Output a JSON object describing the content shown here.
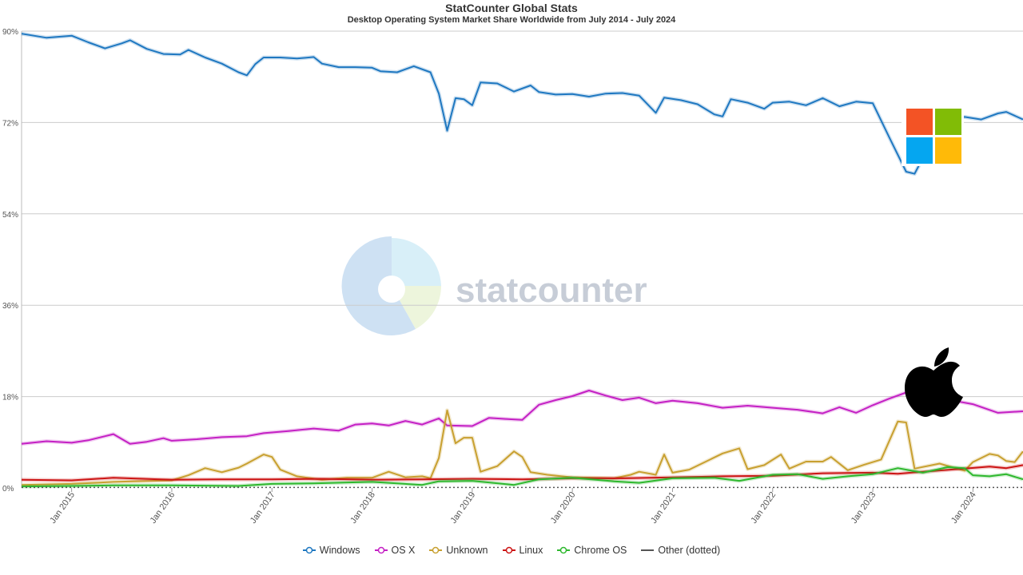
{
  "header": {
    "title": "StatCounter Global Stats",
    "subtitle": "Desktop Operating System Market Share Worldwide from July 2014 - July 2024"
  },
  "watermark": {
    "text": "statcounter"
  },
  "chart_data": {
    "type": "line",
    "x_start": "2014-07",
    "x_end": "2024-07",
    "ylim": [
      0,
      90
    ],
    "yticks": [
      0,
      18,
      36,
      54,
      72,
      90
    ],
    "ytick_labels": [
      "0%",
      "18%",
      "36%",
      "54%",
      "72%",
      "90%"
    ],
    "xticks": [
      "2015-01",
      "2016-01",
      "2017-01",
      "2018-01",
      "2019-01",
      "2020-01",
      "2021-01",
      "2022-01",
      "2023-01",
      "2024-01"
    ],
    "xtick_labels": [
      "Jan 2015",
      "Jan 2016",
      "Jan 2017",
      "Jan 2018",
      "Jan 2019",
      "Jan 2020",
      "Jan 2021",
      "Jan 2022",
      "Jan 2023",
      "Jan 2024"
    ],
    "grid": true,
    "legend_position": "bottom",
    "series": [
      {
        "name": "Windows",
        "color": "#1f78c1",
        "points": [
          [
            "2014-07",
            89.5
          ],
          [
            "2014-10",
            88.7
          ],
          [
            "2015-01",
            89.1
          ],
          [
            "2015-03",
            87.8
          ],
          [
            "2015-05",
            86.6
          ],
          [
            "2015-07",
            87.6
          ],
          [
            "2015-08",
            88.2
          ],
          [
            "2015-10",
            86.5
          ],
          [
            "2015-12",
            85.5
          ],
          [
            "2016-02",
            85.4
          ],
          [
            "2016-03",
            86.3
          ],
          [
            "2016-05",
            84.8
          ],
          [
            "2016-07",
            83.6
          ],
          [
            "2016-09",
            81.9
          ],
          [
            "2016-10",
            81.3
          ],
          [
            "2016-11",
            83.5
          ],
          [
            "2016-12",
            84.8
          ],
          [
            "2017-02",
            84.8
          ],
          [
            "2017-04",
            84.6
          ],
          [
            "2017-06",
            84.9
          ],
          [
            "2017-07",
            83.6
          ],
          [
            "2017-09",
            82.9
          ],
          [
            "2017-11",
            82.9
          ],
          [
            "2018-01",
            82.8
          ],
          [
            "2018-02",
            82.1
          ],
          [
            "2018-04",
            81.9
          ],
          [
            "2018-06",
            83.1
          ],
          [
            "2018-08",
            81.9
          ],
          [
            "2018-09",
            77.7
          ],
          [
            "2018-10",
            70.4
          ],
          [
            "2018-11",
            76.8
          ],
          [
            "2018-12",
            76.6
          ],
          [
            "2019-01",
            75.4
          ],
          [
            "2019-02",
            79.9
          ],
          [
            "2019-04",
            79.7
          ],
          [
            "2019-06",
            78.1
          ],
          [
            "2019-08",
            79.3
          ],
          [
            "2019-09",
            78.0
          ],
          [
            "2019-11",
            77.5
          ],
          [
            "2020-01",
            77.6
          ],
          [
            "2020-03",
            77.1
          ],
          [
            "2020-05",
            77.7
          ],
          [
            "2020-07",
            77.8
          ],
          [
            "2020-09",
            77.3
          ],
          [
            "2020-11",
            73.9
          ],
          [
            "2020-12",
            76.9
          ],
          [
            "2021-02",
            76.4
          ],
          [
            "2021-04",
            75.6
          ],
          [
            "2021-06",
            73.6
          ],
          [
            "2021-07",
            73.2
          ],
          [
            "2021-08",
            76.6
          ],
          [
            "2021-10",
            75.9
          ],
          [
            "2021-12",
            74.7
          ],
          [
            "2022-01",
            75.9
          ],
          [
            "2022-03",
            76.1
          ],
          [
            "2022-05",
            75.4
          ],
          [
            "2022-07",
            76.8
          ],
          [
            "2022-09",
            75.2
          ],
          [
            "2022-11",
            76.1
          ],
          [
            "2023-01",
            75.8
          ],
          [
            "2023-03",
            69.0
          ],
          [
            "2023-05",
            62.3
          ],
          [
            "2023-06",
            61.9
          ],
          [
            "2023-08",
            68.1
          ],
          [
            "2023-10",
            72.4
          ],
          [
            "2023-12",
            73.1
          ],
          [
            "2024-02",
            72.6
          ],
          [
            "2024-04",
            73.8
          ],
          [
            "2024-05",
            74.1
          ],
          [
            "2024-07",
            72.6
          ]
        ]
      },
      {
        "name": "OS X",
        "color": "#c420c4",
        "points": [
          [
            "2014-07",
            8.7
          ],
          [
            "2014-10",
            9.2
          ],
          [
            "2015-01",
            8.9
          ],
          [
            "2015-03",
            9.4
          ],
          [
            "2015-05",
            10.2
          ],
          [
            "2015-06",
            10.6
          ],
          [
            "2015-08",
            8.7
          ],
          [
            "2015-10",
            9.1
          ],
          [
            "2015-12",
            9.8
          ],
          [
            "2016-01",
            9.3
          ],
          [
            "2016-04",
            9.6
          ],
          [
            "2016-07",
            10.0
          ],
          [
            "2016-10",
            10.2
          ],
          [
            "2016-12",
            10.8
          ],
          [
            "2017-03",
            11.2
          ],
          [
            "2017-06",
            11.7
          ],
          [
            "2017-09",
            11.3
          ],
          [
            "2017-11",
            12.5
          ],
          [
            "2018-01",
            12.7
          ],
          [
            "2018-03",
            12.3
          ],
          [
            "2018-05",
            13.2
          ],
          [
            "2018-07",
            12.5
          ],
          [
            "2018-09",
            13.7
          ],
          [
            "2018-10",
            12.3
          ],
          [
            "2019-01",
            12.2
          ],
          [
            "2019-03",
            13.8
          ],
          [
            "2019-05",
            13.6
          ],
          [
            "2019-07",
            13.4
          ],
          [
            "2019-09",
            16.4
          ],
          [
            "2019-11",
            17.3
          ],
          [
            "2020-01",
            18.1
          ],
          [
            "2020-03",
            19.2
          ],
          [
            "2020-05",
            18.2
          ],
          [
            "2020-07",
            17.3
          ],
          [
            "2020-09",
            17.8
          ],
          [
            "2020-11",
            16.7
          ],
          [
            "2021-01",
            17.2
          ],
          [
            "2021-04",
            16.7
          ],
          [
            "2021-07",
            15.8
          ],
          [
            "2021-10",
            16.2
          ],
          [
            "2022-01",
            15.8
          ],
          [
            "2022-04",
            15.4
          ],
          [
            "2022-07",
            14.7
          ],
          [
            "2022-09",
            15.9
          ],
          [
            "2022-11",
            14.8
          ],
          [
            "2023-01",
            16.3
          ],
          [
            "2023-03",
            17.6
          ],
          [
            "2023-05",
            18.8
          ],
          [
            "2023-08",
            17.5
          ],
          [
            "2023-11",
            17.1
          ],
          [
            "2024-01",
            16.5
          ],
          [
            "2024-04",
            14.8
          ],
          [
            "2024-07",
            15.1
          ]
        ]
      },
      {
        "name": "Unknown",
        "color": "#c8a030",
        "points": [
          [
            "2014-07",
            0.6
          ],
          [
            "2015-01",
            0.8
          ],
          [
            "2015-06",
            1.2
          ],
          [
            "2016-01",
            1.5
          ],
          [
            "2016-03",
            2.5
          ],
          [
            "2016-05",
            3.9
          ],
          [
            "2016-07",
            3.1
          ],
          [
            "2016-09",
            4.0
          ],
          [
            "2016-10",
            4.8
          ],
          [
            "2016-12",
            6.6
          ],
          [
            "2017-01",
            6.1
          ],
          [
            "2017-02",
            3.6
          ],
          [
            "2017-04",
            2.3
          ],
          [
            "2017-07",
            1.6
          ],
          [
            "2017-10",
            2.0
          ],
          [
            "2018-01",
            2.0
          ],
          [
            "2018-03",
            3.2
          ],
          [
            "2018-05",
            2.1
          ],
          [
            "2018-07",
            2.3
          ],
          [
            "2018-08",
            1.9
          ],
          [
            "2018-09",
            5.9
          ],
          [
            "2018-10",
            15.3
          ],
          [
            "2018-11",
            8.8
          ],
          [
            "2018-12",
            9.9
          ],
          [
            "2019-01",
            9.9
          ],
          [
            "2019-02",
            3.2
          ],
          [
            "2019-04",
            4.3
          ],
          [
            "2019-06",
            7.2
          ],
          [
            "2019-07",
            6.1
          ],
          [
            "2019-08",
            3.1
          ],
          [
            "2019-10",
            2.6
          ],
          [
            "2020-01",
            2.1
          ],
          [
            "2020-06",
            1.9
          ],
          [
            "2020-08",
            2.6
          ],
          [
            "2020-09",
            3.2
          ],
          [
            "2020-11",
            2.6
          ],
          [
            "2020-12",
            6.6
          ],
          [
            "2021-01",
            3.0
          ],
          [
            "2021-03",
            3.6
          ],
          [
            "2021-05",
            5.2
          ],
          [
            "2021-07",
            6.8
          ],
          [
            "2021-09",
            7.8
          ],
          [
            "2021-10",
            3.7
          ],
          [
            "2021-12",
            4.5
          ],
          [
            "2022-02",
            6.6
          ],
          [
            "2022-03",
            3.8
          ],
          [
            "2022-05",
            5.2
          ],
          [
            "2022-07",
            5.2
          ],
          [
            "2022-08",
            6.1
          ],
          [
            "2022-10",
            3.5
          ],
          [
            "2022-12",
            4.6
          ],
          [
            "2023-02",
            5.6
          ],
          [
            "2023-04",
            13.1
          ],
          [
            "2023-05",
            12.9
          ],
          [
            "2023-06",
            3.8
          ],
          [
            "2023-09",
            4.8
          ],
          [
            "2023-12",
            3.4
          ],
          [
            "2024-01",
            5.1
          ],
          [
            "2024-03",
            6.7
          ],
          [
            "2024-04",
            6.4
          ],
          [
            "2024-05",
            5.3
          ],
          [
            "2024-06",
            5.1
          ],
          [
            "2024-07",
            7.2
          ]
        ]
      },
      {
        "name": "Linux",
        "color": "#cc1414",
        "points": [
          [
            "2014-07",
            1.6
          ],
          [
            "2015-01",
            1.5
          ],
          [
            "2015-06",
            2.0
          ],
          [
            "2016-01",
            1.6
          ],
          [
            "2016-07",
            1.7
          ],
          [
            "2017-01",
            1.7
          ],
          [
            "2017-07",
            1.8
          ],
          [
            "2018-01",
            1.6
          ],
          [
            "2018-07",
            1.7
          ],
          [
            "2019-01",
            1.8
          ],
          [
            "2019-07",
            1.7
          ],
          [
            "2020-01",
            1.9
          ],
          [
            "2020-07",
            1.9
          ],
          [
            "2021-01",
            2.1
          ],
          [
            "2021-07",
            2.3
          ],
          [
            "2022-01",
            2.4
          ],
          [
            "2022-07",
            2.9
          ],
          [
            "2023-01",
            3.0
          ],
          [
            "2023-04",
            2.8
          ],
          [
            "2023-07",
            3.2
          ],
          [
            "2023-12",
            3.8
          ],
          [
            "2024-03",
            4.2
          ],
          [
            "2024-05",
            3.9
          ],
          [
            "2024-07",
            4.5
          ]
        ]
      },
      {
        "name": "Chrome OS",
        "color": "#2eb82e",
        "points": [
          [
            "2014-07",
            0.3
          ],
          [
            "2015-01",
            0.4
          ],
          [
            "2015-06",
            0.5
          ],
          [
            "2016-01",
            0.5
          ],
          [
            "2016-09",
            0.4
          ],
          [
            "2017-01",
            0.8
          ],
          [
            "2017-06",
            0.9
          ],
          [
            "2018-01",
            1.2
          ],
          [
            "2018-07",
            0.6
          ],
          [
            "2018-09",
            1.3
          ],
          [
            "2019-01",
            1.4
          ],
          [
            "2019-06",
            0.6
          ],
          [
            "2019-09",
            1.7
          ],
          [
            "2020-01",
            2.0
          ],
          [
            "2020-06",
            1.3
          ],
          [
            "2020-09",
            1.0
          ],
          [
            "2021-01",
            1.9
          ],
          [
            "2021-06",
            2.0
          ],
          [
            "2021-09",
            1.4
          ],
          [
            "2022-01",
            2.6
          ],
          [
            "2022-04",
            2.7
          ],
          [
            "2022-07",
            1.8
          ],
          [
            "2022-10",
            2.3
          ],
          [
            "2023-01",
            2.7
          ],
          [
            "2023-04",
            3.9
          ],
          [
            "2023-07",
            3.0
          ],
          [
            "2023-10",
            4.1
          ],
          [
            "2023-12",
            3.9
          ],
          [
            "2024-01",
            2.5
          ],
          [
            "2024-03",
            2.3
          ],
          [
            "2024-05",
            2.7
          ],
          [
            "2024-07",
            1.7
          ]
        ]
      },
      {
        "name": "Other (dotted)",
        "color": "#555555",
        "dashed": true,
        "points": [
          [
            "2014-07",
            0.1
          ],
          [
            "2024-07",
            0.1
          ]
        ]
      }
    ]
  },
  "icons": {
    "windows": {
      "name": "windows-logo-icon",
      "colors": [
        "#f35325",
        "#81bc06",
        "#05a6f0",
        "#ffba08"
      ]
    },
    "apple": {
      "name": "apple-logo-icon",
      "color": "#000000"
    }
  }
}
